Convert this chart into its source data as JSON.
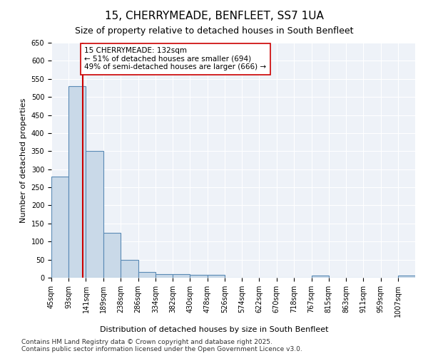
{
  "title": "15, CHERRYMEADE, BENFLEET, SS7 1UA",
  "subtitle": "Size of property relative to detached houses in South Benfleet",
  "xlabel": "Distribution of detached houses by size in South Benfleet",
  "ylabel": "Number of detached properties",
  "bins": [
    "45sqm",
    "93sqm",
    "141sqm",
    "189sqm",
    "238sqm",
    "286sqm",
    "334sqm",
    "382sqm",
    "430sqm",
    "478sqm",
    "526sqm",
    "574sqm",
    "622sqm",
    "670sqm",
    "718sqm",
    "767sqm",
    "815sqm",
    "863sqm",
    "911sqm",
    "959sqm",
    "1007sqm"
  ],
  "bin_edges": [
    45,
    93,
    141,
    189,
    238,
    286,
    334,
    382,
    430,
    478,
    526,
    574,
    622,
    670,
    718,
    767,
    815,
    863,
    911,
    959,
    1007,
    1055
  ],
  "counts": [
    280,
    530,
    350,
    125,
    50,
    15,
    10,
    10,
    7,
    7,
    0,
    0,
    0,
    0,
    0,
    5,
    0,
    0,
    0,
    0,
    5
  ],
  "bar_facecolor": "#c9d9e8",
  "bar_edgecolor": "#5a8ab5",
  "property_line_x": 132,
  "property_line_color": "#cc0000",
  "annotation_text": "15 CHERRYMEADE: 132sqm\n← 51% of detached houses are smaller (694)\n49% of semi-detached houses are larger (666) →",
  "annotation_box_color": "#ffffff",
  "annotation_box_edge": "#cc0000",
  "ylim": [
    0,
    650
  ],
  "yticks": [
    0,
    50,
    100,
    150,
    200,
    250,
    300,
    350,
    400,
    450,
    500,
    550,
    600,
    650
  ],
  "background_color": "#eef2f8",
  "grid_color": "#ffffff",
  "footer_text": "Contains HM Land Registry data © Crown copyright and database right 2025.\nContains public sector information licensed under the Open Government Licence v3.0.",
  "title_fontsize": 11,
  "subtitle_fontsize": 9,
  "axis_label_fontsize": 8,
  "tick_fontsize": 7,
  "annotation_fontsize": 7.5,
  "footer_fontsize": 6.5
}
